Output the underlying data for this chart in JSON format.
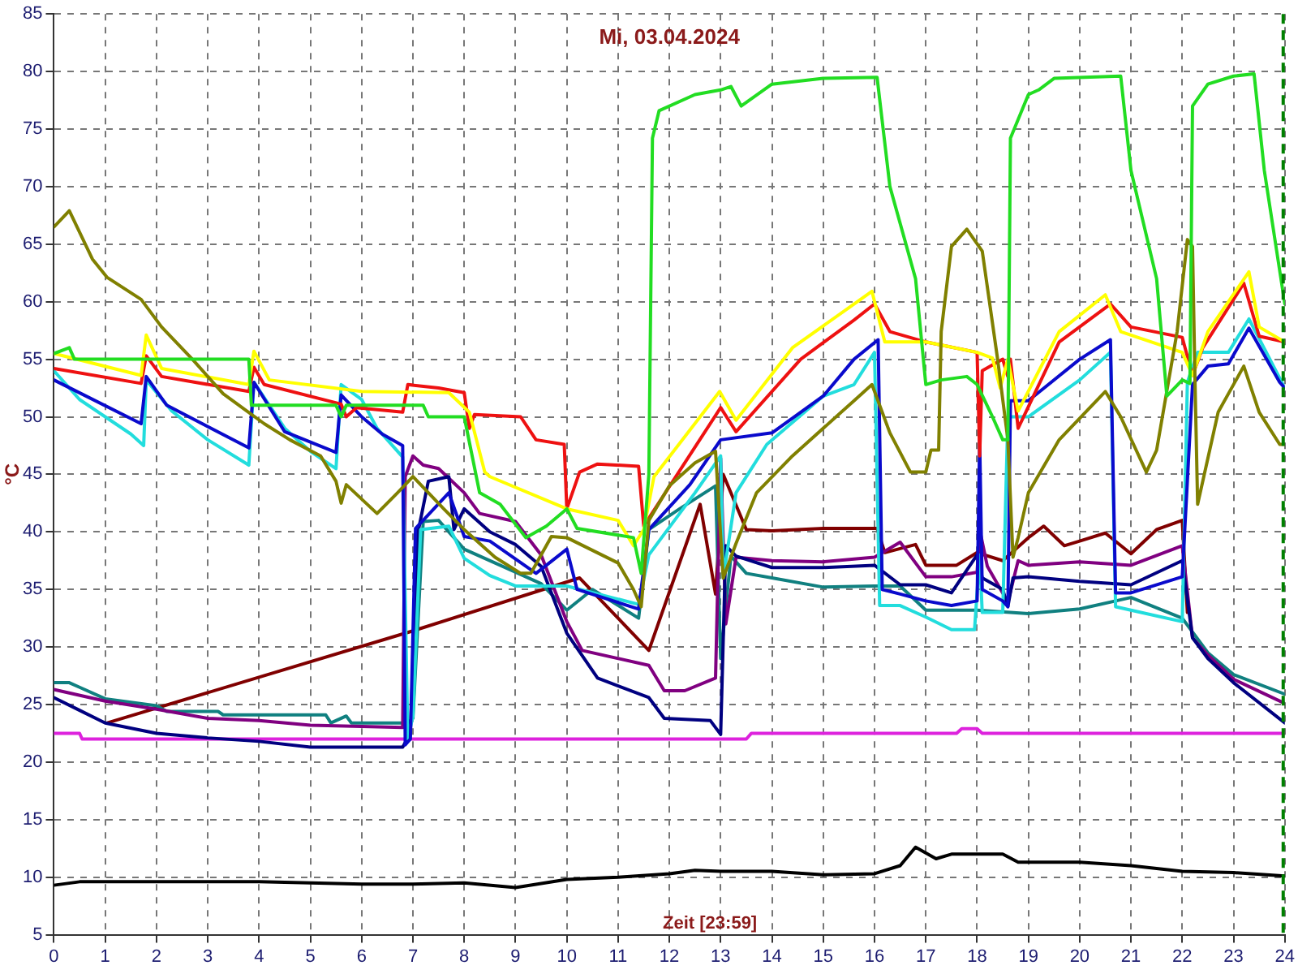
{
  "chart_data": {
    "type": "line",
    "title": "Mi, 03.04.2024",
    "xlabel": "Zeit [23:59]",
    "ylabel": "°C",
    "xlim": [
      0,
      24
    ],
    "xticks": [
      0,
      1,
      2,
      3,
      4,
      5,
      6,
      7,
      8,
      9,
      10,
      11,
      12,
      13,
      14,
      15,
      16,
      17,
      18,
      19,
      20,
      21,
      22,
      23,
      24
    ],
    "ylim": [
      5,
      85
    ],
    "yticks": [
      5,
      10,
      15,
      20,
      25,
      30,
      35,
      40,
      45,
      50,
      55,
      60,
      65,
      70,
      75,
      80,
      85
    ],
    "grid": true,
    "marker": "none",
    "line_style": "solid",
    "ref_lines": [
      {
        "axis": "x",
        "value": 24,
        "color": "#008000",
        "line_style": "dashed"
      }
    ],
    "series": [
      {
        "color": "#22dd22",
        "x": [
          0,
          0.3,
          0.4,
          3.8,
          3.85,
          5.5,
          5.6,
          5.7,
          7.2,
          7.3,
          8.0,
          8.3,
          8.7,
          9.2,
          9.6,
          10.0,
          10.2,
          11.3,
          11.45,
          11.6,
          11.67,
          11.8,
          12.5,
          13.0,
          13.2,
          13.4,
          14.0,
          15.0,
          16.05,
          16.3,
          16.8,
          17.0,
          17.3,
          17.8,
          18.0,
          18.3,
          18.5,
          18.6,
          18.65,
          19.0,
          19.2,
          19.5,
          20.8,
          21.0,
          21.5,
          21.7,
          22.0,
          22.15,
          22.2,
          22.5,
          23.0,
          23.4,
          23.6,
          24
        ],
        "values": [
          55.5,
          56,
          55,
          55,
          51,
          51,
          50,
          51,
          51,
          50,
          50,
          43.4,
          42.4,
          39.5,
          40.5,
          42,
          40.3,
          39.5,
          36.4,
          45,
          74.2,
          76.6,
          78,
          78.4,
          78.7,
          77,
          78.9,
          79.4,
          79.5,
          70,
          62,
          52.8,
          53.2,
          53.5,
          52.8,
          50,
          48,
          48,
          74.2,
          78,
          78.4,
          79.4,
          79.6,
          71.4,
          62,
          51.8,
          53.2,
          52.9,
          77,
          78.9,
          79.6,
          79.8,
          71.4,
          59.8
        ]
      },
      {
        "color": "#808000",
        "x": [
          0,
          0.3,
          0.75,
          1.04,
          1.7,
          2.1,
          2.7,
          3.3,
          4.1,
          4.6,
          5.2,
          5.5,
          5.6,
          5.7,
          6.3,
          6.7,
          7.0,
          7.6,
          8.0,
          8.6,
          9.1,
          9.3,
          9.7,
          10.0,
          11.0,
          11.3,
          11.45,
          11.6,
          12.0,
          12.5,
          12.9,
          13.05,
          13.3,
          13.7,
          14.4,
          15.6,
          15.95,
          16.3,
          16.7,
          17.0,
          17.1,
          17.25,
          17.3,
          17.5,
          17.8,
          18.1,
          18.4,
          18.6,
          18.7,
          18.8,
          19.0,
          19.6,
          20.5,
          20.8,
          21.3,
          21.5,
          21.9,
          22.1,
          22.2,
          22.25,
          22.3,
          22.7,
          23.2,
          23.5,
          23.9,
          24
        ],
        "values": [
          66.5,
          67.9,
          63.7,
          62.1,
          60.2,
          57.8,
          55,
          52,
          49.4,
          48,
          46.6,
          44.4,
          42.5,
          44.1,
          41.6,
          43.4,
          44.8,
          42,
          40.2,
          37.8,
          36.4,
          36.4,
          39.6,
          39.5,
          37.3,
          35,
          33.5,
          41,
          44,
          46,
          47,
          36,
          39,
          43.4,
          46.6,
          51.4,
          52.8,
          48.6,
          45.2,
          45.2,
          47.1,
          47.1,
          57.4,
          64.8,
          66.3,
          64.4,
          55,
          48,
          37.8,
          39.5,
          43.4,
          48,
          52.2,
          50,
          45.2,
          47.1,
          57.4,
          65.4,
          64.8,
          52.8,
          42.4,
          50.4,
          54.4,
          50.4,
          47.6,
          47.6
        ]
      },
      {
        "color": "#ffff00",
        "x": [
          0,
          1.7,
          1.8,
          2.1,
          3.8,
          3.9,
          4.2,
          6,
          7.7,
          8.1,
          8.4,
          8.5,
          10.0,
          11.0,
          11.3,
          11.5,
          11.7,
          12.98,
          13.3,
          14.4,
          15.6,
          15.95,
          16.2,
          17.0,
          18.0,
          18.3,
          18.45,
          18.6,
          18.8,
          19.6,
          20.5,
          20.8,
          22.0,
          22.2,
          22.5,
          23.3,
          23.5,
          24
        ],
        "values": [
          55.5,
          53.6,
          57.1,
          54.2,
          52.8,
          55.7,
          53.2,
          52.2,
          52.1,
          50.4,
          45.2,
          44.8,
          42,
          41,
          38.8,
          40.2,
          44.8,
          52.2,
          49.7,
          56,
          59.8,
          60.9,
          56.5,
          56.5,
          55.6,
          55.1,
          52.5,
          55,
          50.5,
          57.4,
          60.6,
          57.4,
          55.6,
          53.6,
          57.4,
          62.6,
          57.8,
          56.5
        ]
      },
      {
        "color": "#ee1111",
        "x": [
          0,
          1.7,
          1.8,
          2.1,
          3.8,
          3.9,
          4.1,
          5.6,
          5.7,
          5.9,
          6.8,
          6.9,
          7.5,
          8.0,
          8.1,
          8.2,
          9.1,
          9.4,
          9.95,
          10.0,
          10.25,
          10.6,
          11.4,
          11.5,
          13.0,
          13.3,
          14.56,
          15.6,
          16.0,
          16.3,
          17.0,
          18.0,
          18.05,
          18.1,
          18.5,
          18.6,
          18.65,
          18.8,
          19.6,
          20.6,
          21.0,
          22.0,
          22.2,
          22.4,
          23.2,
          23.5,
          24
        ],
        "values": [
          54.2,
          52.9,
          55.3,
          53.5,
          52.2,
          54.3,
          52.8,
          51.1,
          50,
          50.8,
          50.4,
          52.8,
          52.5,
          52.1,
          49,
          50.2,
          50,
          48,
          47.6,
          42,
          45.2,
          45.9,
          45.7,
          40.5,
          50.8,
          48.7,
          55,
          58.4,
          59.8,
          57.4,
          56.5,
          55.6,
          46.6,
          54,
          55,
          53.5,
          55,
          49,
          56.5,
          59.8,
          57.8,
          56.9,
          53.6,
          56,
          61.6,
          57,
          56.5
        ]
      },
      {
        "color": "#0a0acc",
        "x": [
          0,
          1.7,
          1.8,
          2.2,
          3.8,
          3.9,
          4.5,
          5.5,
          5.6,
          6.0,
          6.4,
          6.8,
          6.85,
          6.95,
          7.05,
          7.7,
          8.0,
          8.5,
          9.4,
          10.0,
          10.2,
          11.4,
          11.6,
          12.4,
          13.0,
          14.0,
          15.0,
          15.6,
          16.07,
          16.15,
          16.5,
          17.0,
          17.5,
          18.0,
          18.05,
          18.1,
          18.5,
          18.6,
          18.65,
          19.0,
          20.0,
          20.6,
          20.7,
          21.0,
          22.0,
          22.2,
          22.5,
          22.9,
          23.3,
          23.9,
          24
        ],
        "values": [
          53.2,
          49.4,
          53.5,
          51,
          47.3,
          53,
          48.7,
          46.9,
          51.9,
          50,
          48.5,
          47.5,
          21.5,
          22,
          40.3,
          43.4,
          39.6,
          39.2,
          36.4,
          38.5,
          35,
          33.3,
          40.2,
          44.1,
          48,
          48.6,
          51.8,
          55,
          56.7,
          35,
          34.6,
          34,
          33.6,
          34,
          48,
          35,
          34,
          33.5,
          51.4,
          51.4,
          55,
          56.7,
          34.7,
          34.7,
          36.1,
          52.8,
          54.4,
          54.6,
          57.7,
          53,
          52.5
        ]
      },
      {
        "color": "#22dddd",
        "x": [
          0,
          0.5,
          1.0,
          1.5,
          1.75,
          1.8,
          2.3,
          3.0,
          3.8,
          3.9,
          4.5,
          5.0,
          5.5,
          5.6,
          6.0,
          6.3,
          6.8,
          6.9,
          7.0,
          7.15,
          7.7,
          8.0,
          8.5,
          9.0,
          10.0,
          11.4,
          11.6,
          12.5,
          13.0,
          13.05,
          13.3,
          13.9,
          15.0,
          15.6,
          16.0,
          16.1,
          16.5,
          17.0,
          17.5,
          17.95,
          18.05,
          18.1,
          18.5,
          18.6,
          19.0,
          20.0,
          20.6,
          20.7,
          21.0,
          22.0,
          22.1,
          22.3,
          22.9,
          23.3,
          24
        ],
        "values": [
          54,
          51.5,
          50,
          48.5,
          47.5,
          53.2,
          50.5,
          48,
          45.8,
          53,
          49,
          47,
          45.5,
          52.8,
          51.5,
          49,
          46.5,
          22,
          24,
          40.2,
          40.5,
          37.7,
          36.2,
          35.3,
          35.3,
          33.7,
          38,
          43.4,
          46.6,
          36,
          43.4,
          47.6,
          51.8,
          52.8,
          55.6,
          33.6,
          33.6,
          32.6,
          31.5,
          31.5,
          38,
          33,
          33,
          50,
          50,
          53.2,
          55.6,
          33.5,
          33.2,
          32.2,
          53,
          55.6,
          55.6,
          58.5,
          52.5
        ]
      },
      {
        "color": "#000080",
        "x": [
          0,
          0.5,
          1.0,
          2.0,
          3.0,
          4.0,
          5.0,
          6.0,
          6.8,
          6.95,
          7.1,
          7.3,
          7.7,
          7.8,
          8.0,
          8.5,
          9.0,
          9.5,
          10.0,
          10.6,
          11.6,
          11.9,
          12.8,
          13.0,
          13.1,
          13.3,
          14.0,
          15.0,
          16.0,
          16.5,
          17.0,
          17.5,
          18.0,
          18.1,
          18.5,
          18.6,
          18.7,
          19.0,
          20.0,
          21.0,
          22.0,
          22.2,
          22.5,
          23.0,
          24
        ],
        "values": [
          25.6,
          24.5,
          23.4,
          22.5,
          22.1,
          21.8,
          21.3,
          21.3,
          21.3,
          22.5,
          40,
          44.4,
          44.8,
          40.2,
          42,
          40,
          38.9,
          37,
          31.2,
          27.3,
          25.6,
          23.8,
          23.6,
          22.4,
          38.8,
          37.9,
          36.9,
          36.9,
          37.1,
          35.4,
          35.4,
          34.7,
          38,
          36,
          35,
          33.5,
          36,
          36.1,
          35.7,
          35.4,
          37.5,
          30.8,
          29,
          26.9,
          23.4
        ]
      },
      {
        "color": "#800080",
        "x": [
          0,
          1.0,
          2.0,
          3.0,
          4.0,
          5.0,
          6.0,
          6.8,
          6.85,
          7.0,
          7.2,
          7.5,
          8.0,
          8.3,
          9.0,
          9.5,
          10.0,
          10.3,
          11.6,
          11.9,
          12.3,
          12.9,
          13.0,
          13.1,
          13.3,
          14.0,
          15.0,
          16.0,
          16.5,
          17.0,
          17.5,
          18.0,
          18.05,
          18.2,
          18.6,
          18.8,
          19.0,
          20.0,
          21.0,
          22.0,
          22.2,
          22.5,
          23.0,
          24
        ],
        "values": [
          26.3,
          25.3,
          24.6,
          23.8,
          23.6,
          23.2,
          23.1,
          23.0,
          44.8,
          46.6,
          45.8,
          45.5,
          43.4,
          41.6,
          40.9,
          38,
          32.2,
          29.7,
          28.4,
          26.2,
          26.2,
          27.3,
          46.4,
          32,
          37.8,
          37.5,
          37.4,
          37.8,
          39.1,
          36.1,
          36.1,
          36.5,
          40.2,
          37,
          33.9,
          37.5,
          37.1,
          37.4,
          37.1,
          38.8,
          30.8,
          29.3,
          27.2,
          25.1
        ]
      },
      {
        "color": "#108080",
        "x": [
          0,
          0.3,
          0.5,
          1.0,
          2.0,
          2.2,
          3.2,
          3.3,
          5.3,
          5.4,
          5.7,
          5.8,
          6.9,
          7.0,
          7.2,
          7.5,
          8.0,
          9.0,
          9.5,
          10.0,
          10.5,
          11.4,
          11.6,
          12.2,
          12.9,
          13.0,
          13.2,
          13.5,
          14.0,
          15.0,
          16.0,
          16.5,
          17.0,
          18.0,
          19.0,
          20.0,
          21.0,
          22.0,
          22.5,
          23.0,
          24
        ],
        "values": [
          26.9,
          26.9,
          26.5,
          25.5,
          24.9,
          24.4,
          24.4,
          24.1,
          24.1,
          23.4,
          24,
          23.4,
          23.4,
          23.8,
          40.9,
          41,
          38.5,
          36.5,
          35.5,
          33.2,
          35,
          32.5,
          40.2,
          42,
          44,
          29,
          37.9,
          36.4,
          36,
          35.2,
          35.3,
          35.3,
          33.2,
          33.2,
          32.9,
          33.3,
          34.3,
          32.5,
          29.5,
          27.6,
          25.9
        ]
      },
      {
        "color": "#800000",
        "x": [
          1.04,
          7.0,
          10.25,
          11.6,
          12.6,
          12.9,
          13.05,
          13.5,
          14.0,
          15.0,
          16.05,
          16.2,
          16.8,
          17.0,
          17.6,
          18.0,
          18.5,
          19.0,
          19.3,
          19.7,
          20.0,
          20.5,
          21.0,
          21.5,
          22.0,
          22.1
        ],
        "values": [
          23.4,
          31.4,
          36,
          29.7,
          42.4,
          34.6,
          45,
          40.2,
          40.1,
          40.3,
          40.3,
          38.2,
          38.9,
          37.1,
          37.1,
          38.2,
          37.5,
          39.5,
          40.5,
          38.8,
          39.2,
          39.9,
          38.1,
          40.2,
          41.0,
          33
        ]
      },
      {
        "color": "#dd22dd",
        "x": [
          0,
          0.5,
          0.55,
          13.5,
          13.6,
          17.6,
          17.7,
          18,
          18.1,
          24
        ],
        "values": [
          22.5,
          22.5,
          22.0,
          22.0,
          22.5,
          22.5,
          22.9,
          22.9,
          22.5,
          22.5
        ]
      },
      {
        "color": "#000000",
        "x": [
          0,
          0.5,
          2,
          4,
          6,
          7,
          8,
          9,
          10,
          11,
          12,
          12.5,
          13,
          14,
          15,
          16,
          16.5,
          16.8,
          17.2,
          17.5,
          18.5,
          18.8,
          20,
          21,
          22,
          23,
          24
        ],
        "values": [
          9.3,
          9.6,
          9.6,
          9.6,
          9.4,
          9.4,
          9.5,
          9.1,
          9.8,
          10.0,
          10.3,
          10.6,
          10.5,
          10.5,
          10.2,
          10.3,
          11.0,
          12.6,
          11.6,
          12.0,
          12.0,
          11.3,
          11.3,
          11.0,
          10.5,
          10.4,
          10.1
        ]
      }
    ]
  }
}
